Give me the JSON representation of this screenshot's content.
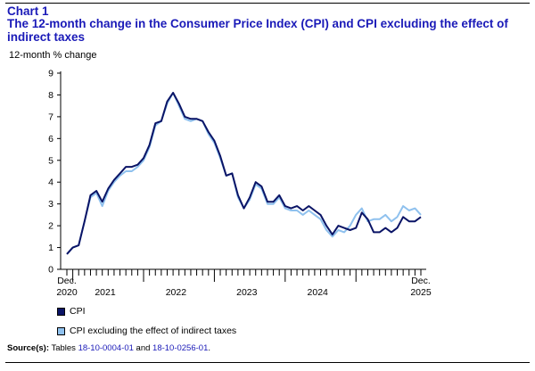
{
  "header": {
    "chart_label": "Chart 1",
    "title": "The 12-month change in the Consumer Price Index (CPI) and CPI excluding the effect of indirect taxes"
  },
  "colors": {
    "title": "#1a1ab8",
    "cpi": "#0a1466",
    "cpi_excl": "#8fc1ee",
    "link": "#1a1ab8"
  },
  "source": {
    "label": "Source(s):",
    "prefix": "Tables",
    "table1": "18-10-0004-01",
    "and": "and",
    "table2": "18-10-0256-01",
    "suffix": "."
  },
  "chart_data": {
    "type": "line",
    "ylabel": "12-month % change",
    "ylim": [
      0,
      9
    ],
    "yticks": [
      0,
      1,
      2,
      3,
      4,
      5,
      6,
      7,
      8,
      9
    ],
    "x_start_label": [
      "Dec.",
      "2020"
    ],
    "x_end_label": [
      "Dec.",
      "2025"
    ],
    "year_labels": [
      "2021",
      "2022",
      "2023",
      "2024"
    ],
    "grid": false,
    "legend_position": "bottom-left",
    "series": [
      {
        "name": "CPI",
        "values": [
          0.7,
          1.0,
          1.1,
          2.2,
          3.4,
          3.6,
          3.1,
          3.7,
          4.1,
          4.4,
          4.7,
          4.7,
          4.8,
          5.1,
          5.7,
          6.7,
          6.8,
          7.7,
          8.1,
          7.6,
          7.0,
          6.9,
          6.9,
          6.8,
          6.3,
          5.9,
          5.2,
          4.3,
          4.4,
          3.4,
          2.8,
          3.3,
          4.0,
          3.8,
          3.1,
          3.1,
          3.4,
          2.9,
          2.8,
          2.9,
          2.7,
          2.9,
          2.7,
          2.5,
          2.0,
          1.6,
          2.0,
          1.9,
          1.8,
          1.9,
          2.6,
          2.3,
          1.7,
          1.7,
          1.9,
          1.7,
          1.9,
          2.4,
          2.2,
          2.2,
          2.4
        ]
      },
      {
        "name": "CPI excluding the effect of indirect taxes",
        "values": [
          0.7,
          1.0,
          1.1,
          2.2,
          3.3,
          3.5,
          2.9,
          3.6,
          4.0,
          4.3,
          4.5,
          4.5,
          4.7,
          5.0,
          5.6,
          6.6,
          6.8,
          7.6,
          8.1,
          7.5,
          6.9,
          6.8,
          6.9,
          6.8,
          6.2,
          5.8,
          5.1,
          4.3,
          4.4,
          3.3,
          2.8,
          3.2,
          3.9,
          3.7,
          3.0,
          3.0,
          3.3,
          2.8,
          2.7,
          2.7,
          2.5,
          2.7,
          2.5,
          2.3,
          1.8,
          1.5,
          1.8,
          1.7,
          2.0,
          2.5,
          2.8,
          2.2,
          2.3,
          2.3,
          2.5,
          2.2,
          2.4,
          2.9,
          2.7,
          2.8,
          2.5
        ]
      }
    ]
  }
}
